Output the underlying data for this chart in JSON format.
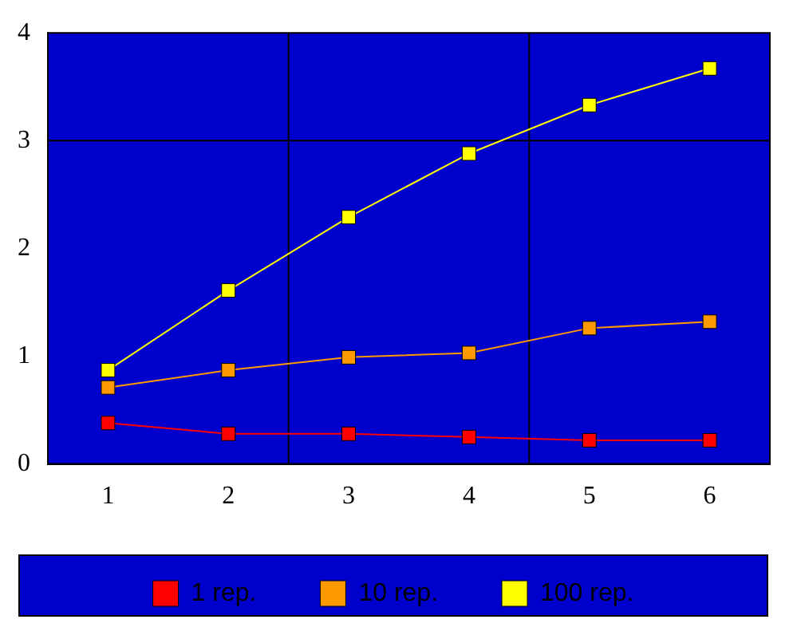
{
  "chart_data": {
    "type": "line",
    "x": [
      1,
      2,
      3,
      4,
      5,
      6
    ],
    "series": [
      {
        "name": "1 rep.",
        "color": "#ff0000",
        "values": [
          0.38,
          0.28,
          0.28,
          0.25,
          0.22,
          0.22
        ]
      },
      {
        "name": "10 rep.",
        "color": "#ff9900",
        "values": [
          0.71,
          0.87,
          0.99,
          1.03,
          1.26,
          1.32
        ]
      },
      {
        "name": "100 rep.",
        "color": "#ffff00",
        "values": [
          0.87,
          1.61,
          2.29,
          2.88,
          3.33,
          3.67
        ]
      }
    ],
    "xlim": [
      0.5,
      6.5
    ],
    "xticks": [
      1,
      2,
      3,
      4,
      5,
      6
    ],
    "ylim": [
      0,
      4
    ],
    "yticks": [
      0,
      1,
      2,
      3,
      4
    ],
    "ref_lines": [
      {
        "axis": "x",
        "value": 2.5,
        "color": "#000000"
      },
      {
        "axis": "x",
        "value": 4.5,
        "color": "#000000"
      },
      {
        "axis": "y",
        "value": 3,
        "color": "#000000"
      }
    ],
    "grid": false,
    "legend": "bottom",
    "marker": "square",
    "line_style": "solid"
  }
}
